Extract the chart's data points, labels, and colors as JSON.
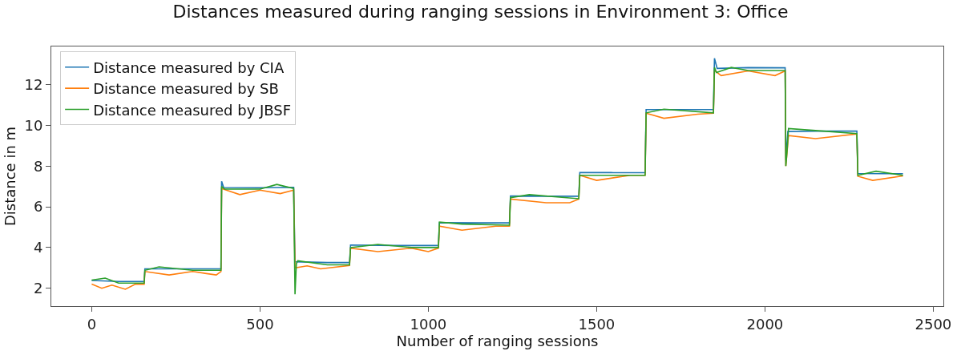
{
  "chart_data": {
    "type": "line",
    "title": "Distances measured during ranging sessions in Environment 3: Office",
    "xlabel": "Number of ranging sessions",
    "ylabel": "Distance in m",
    "xlim": [
      -120,
      2530
    ],
    "xticks": [
      0,
      500,
      1000,
      1500,
      2000,
      2500
    ],
    "ylim": [
      1.12,
      13.88
    ],
    "yticks": [
      2,
      4,
      6,
      8,
      10,
      12
    ],
    "grid": false,
    "legend": "top left",
    "marker": "none",
    "line_style": "solid",
    "series": [
      {
        "name": "Distance measured by CIA",
        "color": "#1f77b4",
        "x": [
          0,
          80,
          156,
          158,
          270,
          384,
          386,
          392,
          500,
          600,
          604,
          700,
          766,
          769,
          900,
          1030,
          1033,
          1150,
          1241,
          1244,
          1350,
          1447,
          1450,
          1550,
          1644,
          1647,
          1750,
          1847,
          1850,
          1858,
          1950,
          2060,
          2062,
          2068,
          2170,
          2273,
          2276,
          2350,
          2410
        ],
        "values": [
          2.38,
          2.33,
          2.33,
          2.95,
          2.95,
          2.95,
          7.25,
          6.95,
          6.94,
          6.96,
          3.3,
          3.26,
          3.26,
          4.12,
          4.1,
          4.1,
          5.22,
          5.21,
          5.21,
          6.53,
          6.52,
          6.52,
          7.69,
          7.68,
          7.68,
          10.78,
          10.78,
          10.78,
          13.3,
          12.8,
          12.84,
          12.83,
          8.3,
          9.7,
          9.72,
          9.72,
          7.64,
          7.63,
          7.63
        ]
      },
      {
        "name": "Distance measured by SB",
        "color": "#ff7f0e",
        "x": [
          0,
          30,
          60,
          100,
          130,
          156,
          158,
          230,
          300,
          370,
          384,
          386,
          440,
          500,
          560,
          600,
          604,
          640,
          680,
          766,
          769,
          850,
          950,
          1000,
          1030,
          1033,
          1100,
          1200,
          1241,
          1244,
          1350,
          1420,
          1447,
          1450,
          1500,
          1600,
          1644,
          1647,
          1700,
          1800,
          1847,
          1850,
          1870,
          1950,
          2030,
          2060,
          2062,
          2070,
          2150,
          2273,
          2276,
          2320,
          2410
        ],
        "values": [
          2.2,
          2.0,
          2.15,
          1.95,
          2.2,
          2.2,
          2.82,
          2.65,
          2.82,
          2.65,
          2.82,
          6.9,
          6.6,
          6.82,
          6.65,
          6.82,
          3.0,
          3.1,
          2.95,
          3.12,
          3.97,
          3.8,
          3.97,
          3.8,
          3.97,
          5.05,
          4.85,
          5.05,
          5.05,
          6.38,
          6.2,
          6.2,
          6.38,
          7.55,
          7.3,
          7.55,
          7.55,
          10.6,
          10.35,
          10.55,
          10.6,
          12.7,
          12.45,
          12.68,
          12.45,
          12.68,
          8.0,
          9.5,
          9.35,
          9.58,
          7.5,
          7.3,
          7.52
        ]
      },
      {
        "name": "Distance measured by JBSF",
        "color": "#2ca02c",
        "x": [
          0,
          40,
          80,
          156,
          158,
          200,
          300,
          384,
          386,
          395,
          500,
          550,
          600,
          604,
          608,
          612,
          700,
          766,
          769,
          850,
          950,
          1030,
          1033,
          1100,
          1241,
          1244,
          1300,
          1447,
          1450,
          1530,
          1644,
          1647,
          1700,
          1847,
          1850,
          1856,
          1900,
          1950,
          2060,
          2062,
          2066,
          2070,
          2150,
          2273,
          2276,
          2330,
          2410
        ],
        "values": [
          2.4,
          2.5,
          2.25,
          2.25,
          2.88,
          3.05,
          2.88,
          2.88,
          7.0,
          6.87,
          6.87,
          7.1,
          6.9,
          1.7,
          3.2,
          3.35,
          3.15,
          3.15,
          4.0,
          4.15,
          4.0,
          4.0,
          5.25,
          5.15,
          5.1,
          6.45,
          6.6,
          6.4,
          7.55,
          7.55,
          7.55,
          10.62,
          10.8,
          10.62,
          12.85,
          12.6,
          12.85,
          12.7,
          12.7,
          8.0,
          8.8,
          9.85,
          9.75,
          9.6,
          7.55,
          7.75,
          7.55
        ]
      }
    ]
  }
}
